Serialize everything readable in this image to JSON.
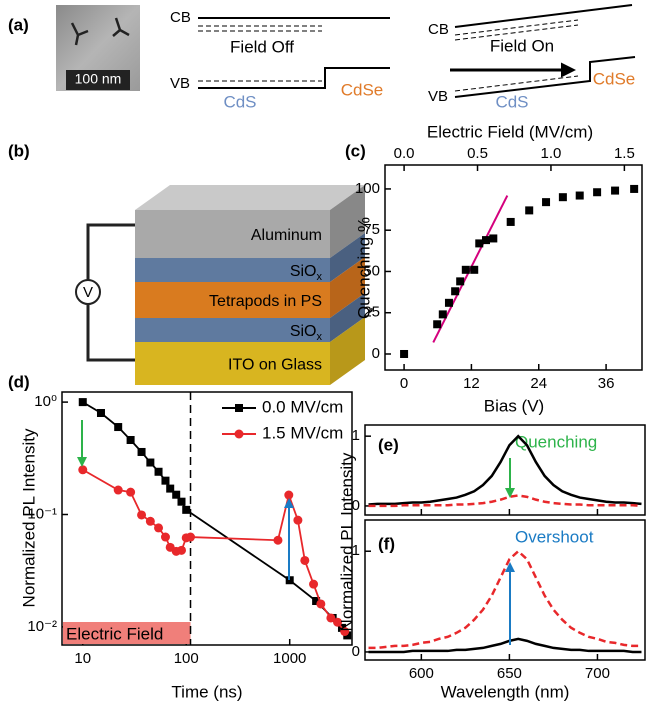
{
  "panels": {
    "a": {
      "label": "(a)",
      "scale_bar": "100 nm",
      "field_off": {
        "cb": "CB",
        "vb": "VB",
        "title": "Field Off",
        "left": "CdS",
        "right": "CdSe"
      },
      "field_on": {
        "cb": "CB",
        "vb": "VB",
        "title": "Field On",
        "left": "CdS",
        "right": "CdSe"
      }
    },
    "b": {
      "label": "(b)",
      "source": "V",
      "layers": [
        {
          "text": "Aluminum"
        },
        {
          "text": "SiO",
          "subscript": "x"
        },
        {
          "text": "Tetrapods in PS"
        },
        {
          "text": "SiO",
          "subscript": "x"
        },
        {
          "text": "ITO on Glass"
        }
      ]
    }
  },
  "chart_data": [
    {
      "label": "(c)",
      "type": "scatter",
      "xlabel": "Bias (V)",
      "ylabel": "Quenching %",
      "x2label": "Electric Field (MV/cm)",
      "xlim": [
        -3.4,
        42.4
      ],
      "xticks": [
        0,
        12,
        24,
        36
      ],
      "x2lim": [
        -0.13,
        1.62
      ],
      "x2ticks": [
        {
          "value": 0,
          "label": "0.0"
        },
        0.5,
        {
          "value": 1,
          "label": "1.0"
        },
        1.5
      ],
      "ylim": [
        -9.7,
        114.5
      ],
      "yticks": [
        0,
        25,
        50,
        75,
        100
      ],
      "marker": "square",
      "series": [
        {
          "color": "#000000",
          "x": [
            0,
            5.9,
            6.9,
            8,
            9.1,
            10,
            11,
            12.5,
            13.4,
            14.6,
            15.9,
            19,
            22.3,
            25.3,
            28.3,
            31.3,
            34.4,
            37.6,
            41
          ],
          "values": [
            0,
            18,
            24,
            31,
            38,
            44,
            51,
            51,
            67,
            69,
            70,
            80,
            87,
            92,
            95,
            96,
            98,
            99,
            100
          ]
        }
      ],
      "fit": {
        "color": "#d4007d",
        "x": [
          5.2,
          18.4
        ],
        "values": [
          7,
          96
        ]
      }
    },
    {
      "label": "(d)",
      "type": "line",
      "xlabel": "Time (ns)",
      "ylabel": "Normalized PL Intensity",
      "log_x": true,
      "log_y": true,
      "xlim": [
        6.3,
        4000
      ],
      "xticks": [
        10,
        100,
        1000
      ],
      "ylim": [
        0.0069,
        1.23
      ],
      "yticks": [
        {
          "value": 1,
          "label": "10⁰"
        },
        {
          "value": 0.1,
          "label": "10⁻¹"
        },
        {
          "value": 0.01,
          "label": "10⁻²"
        }
      ],
      "legend": "upper right",
      "annotation": "Electric Field",
      "field_off_time": 110,
      "series": [
        {
          "name": "0.0 MV/cm",
          "color": "#000000",
          "marker": "square",
          "x": [
            10,
            15,
            22,
            29,
            37,
            45,
            54,
            63,
            70,
            80,
            90,
            100,
            1000,
            1800,
            2600,
            3200,
            3600
          ],
          "values": [
            1.0,
            0.8,
            0.6,
            0.46,
            0.36,
            0.29,
            0.24,
            0.2,
            0.17,
            0.15,
            0.13,
            0.11,
            0.026,
            0.017,
            0.012,
            0.0098,
            0.0084
          ]
        },
        {
          "name": "1.5 MV/cm",
          "color": "#e8282b",
          "marker": "circle",
          "x": [
            10,
            22,
            29,
            37,
            45,
            54,
            63,
            70,
            80,
            90,
            100,
            110,
            770,
            980,
            1200,
            1400,
            1700,
            2000,
            2500,
            2900,
            3400
          ],
          "values": [
            0.25,
            0.165,
            0.158,
            0.099,
            0.087,
            0.076,
            0.063,
            0.051,
            0.047,
            0.048,
            0.062,
            0.063,
            0.059,
            0.149,
            0.089,
            0.039,
            0.024,
            0.016,
            0.012,
            0.011,
            0.0091
          ]
        }
      ]
    },
    {
      "label": "(e)",
      "type": "line",
      "ylabel": "Normalized PL Intensity",
      "annotation": "Quenching",
      "annotation_color": "#2db34a",
      "xlim": [
        568,
        727
      ],
      "xticks": [
        600,
        650,
        700
      ],
      "xtick_labels": false,
      "ylim": [
        -0.13,
        1.16
      ],
      "yticks": [
        0,
        1
      ],
      "x": [
        570,
        575,
        580,
        585,
        590,
        595,
        600,
        605,
        610,
        615,
        620,
        625,
        630,
        635,
        640,
        645,
        650,
        655,
        660,
        665,
        670,
        675,
        680,
        685,
        690,
        695,
        700,
        705,
        710,
        715,
        720,
        725
      ],
      "series": [
        {
          "color": "#000000",
          "dash": false,
          "values": [
            0.02,
            0.03,
            0.03,
            0.03,
            0.04,
            0.05,
            0.05,
            0.06,
            0.08,
            0.1,
            0.12,
            0.16,
            0.21,
            0.3,
            0.43,
            0.63,
            0.87,
            1,
            0.87,
            0.63,
            0.43,
            0.3,
            0.21,
            0.16,
            0.12,
            0.1,
            0.08,
            0.06,
            0.05,
            0.05,
            0.04,
            0.03
          ]
        },
        {
          "color": "#e8282b",
          "dash": true,
          "values": [
            0,
            0,
            0,
            0,
            0.01,
            0.01,
            0.01,
            0.01,
            0.01,
            0.01,
            0.02,
            0.02,
            0.03,
            0.04,
            0.06,
            0.09,
            0.13,
            0.15,
            0.13,
            0.09,
            0.06,
            0.04,
            0.03,
            0.02,
            0.02,
            0.01,
            0.01,
            0.01,
            0.01,
            0.01,
            0.01,
            0
          ]
        }
      ]
    },
    {
      "label": "(f)",
      "type": "line",
      "xlabel": "Wavelength (nm)",
      "annotation": "Overshoot",
      "annotation_color": "#1a7bc4",
      "xlim": [
        568,
        727
      ],
      "xticks": [
        600,
        650,
        700
      ],
      "ylim": [
        -0.08,
        1.31
      ],
      "yticks": [
        0,
        1
      ],
      "x": [
        570,
        575,
        580,
        585,
        590,
        595,
        600,
        605,
        610,
        615,
        620,
        625,
        630,
        635,
        640,
        645,
        650,
        655,
        660,
        665,
        670,
        675,
        680,
        685,
        690,
        695,
        700,
        705,
        710,
        715,
        720,
        725
      ],
      "series": [
        {
          "color": "#000000",
          "dash": false,
          "values": [
            0,
            0,
            0,
            0,
            0,
            0.01,
            0.01,
            0.01,
            0.01,
            0.01,
            0.02,
            0.02,
            0.03,
            0.04,
            0.06,
            0.08,
            0.11,
            0.13,
            0.11,
            0.08,
            0.06,
            0.04,
            0.03,
            0.02,
            0.02,
            0.01,
            0.01,
            0.01,
            0.01,
            0.01,
            0,
            0
          ]
        },
        {
          "color": "#e8282b",
          "dash": true,
          "values": [
            0.04,
            0.04,
            0.05,
            0.06,
            0.06,
            0.07,
            0.09,
            0.1,
            0.13,
            0.15,
            0.19,
            0.24,
            0.32,
            0.42,
            0.56,
            0.74,
            0.92,
            1,
            0.92,
            0.74,
            0.56,
            0.42,
            0.32,
            0.24,
            0.19,
            0.15,
            0.13,
            0.1,
            0.09,
            0.07,
            0.06,
            0.06
          ]
        }
      ]
    }
  ]
}
